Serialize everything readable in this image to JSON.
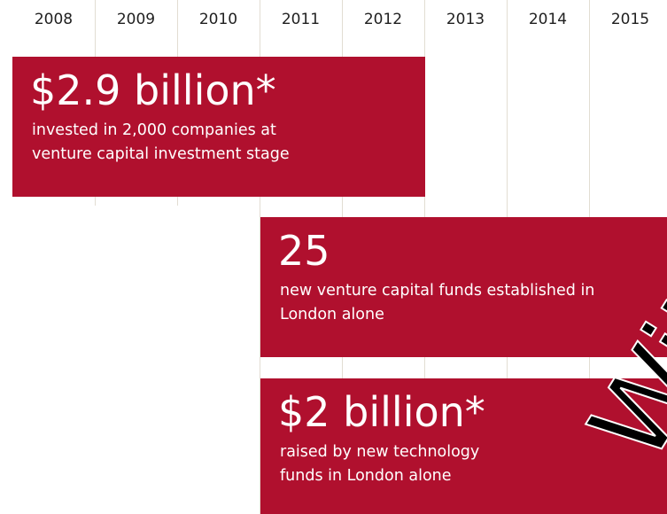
{
  "years": [
    "2008",
    "2009",
    "2010",
    "2011",
    "2012",
    "2013",
    "2014",
    "2015"
  ],
  "panels": [
    {
      "headline": "$2.9 billion*",
      "text": "invested in 2,000 companies at venture capital investment stage"
    },
    {
      "headline": "25",
      "text": "new venture capital funds established in London alone"
    },
    {
      "headline": "$2 billion*",
      "text": "raised by new technology funds in London alone"
    }
  ],
  "watermark": "Witho"
}
